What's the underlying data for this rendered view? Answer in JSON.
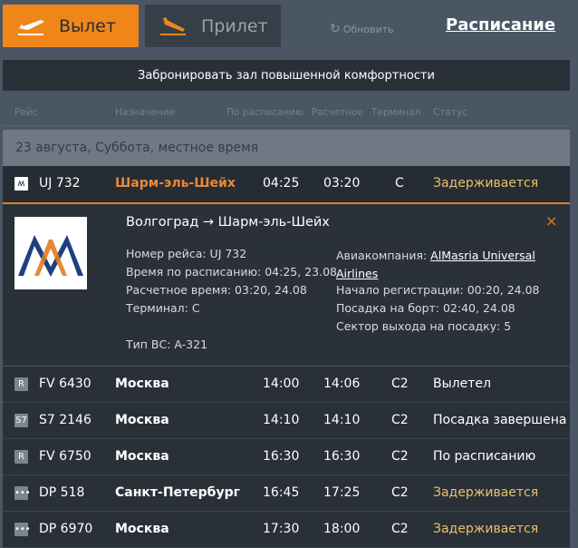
{
  "tabs": {
    "departure": "Вылет",
    "arrival": "Прилет"
  },
  "refresh": "Обновить",
  "schedule_link": "Расписание",
  "banner": "Забронировать зал повышенной комфортности",
  "columns": [
    "Рейс",
    "Назначение",
    "По расписанию",
    "Расчетное",
    "Терминал",
    "Статус"
  ],
  "date_header": "23 августа, Суббота, местное время",
  "colors": {
    "accent": "#f0861a",
    "delayed": "#e8c16a",
    "dest_highlight": "#e8873a"
  },
  "expanded": {
    "flight": "UJ 732",
    "destination": "Шарм-эль-Шейх",
    "scheduled": "04:25",
    "estimated": "03:20",
    "terminal": "C",
    "status": "Задерживается",
    "route": "Волгоград → Шарм-эль-Шейх",
    "left": [
      "Номер рейса: UJ 732",
      "Время по расписанию: 04:25, 23.08",
      "Расчетное время: 03:20, 24.08",
      "Терминал: C"
    ],
    "aircraft": "Тип ВС: A-321",
    "airline_label": "Авиакомпания: ",
    "airline": "AlMasria Universal Airlines",
    "right": [
      "Начало регистрации: 00:20, 24.08",
      "Посадка на борт: 02:40, 24.08",
      "Сектор выхода на посадку: 5"
    ],
    "close": "×"
  },
  "flights": [
    {
      "logo": "R",
      "flight": "FV 6430",
      "destination": "Москва",
      "scheduled": "14:00",
      "estimated": "14:06",
      "terminal": "C2",
      "status": "Вылетел",
      "delayed": false
    },
    {
      "logo": "S7",
      "flight": "S7 2146",
      "destination": "Москва",
      "scheduled": "14:10",
      "estimated": "14:10",
      "terminal": "C2",
      "status": "Посадка завершена",
      "delayed": false
    },
    {
      "logo": "R",
      "flight": "FV 6750",
      "destination": "Москва",
      "scheduled": "16:30",
      "estimated": "16:30",
      "terminal": "C2",
      "status": "По расписанию",
      "delayed": false
    },
    {
      "logo": "•••",
      "flight": "DP 518",
      "destination": "Санкт-Петербург",
      "scheduled": "16:45",
      "estimated": "17:25",
      "terminal": "C2",
      "status": "Задерживается",
      "delayed": true
    },
    {
      "logo": "•••",
      "flight": "DP 6970",
      "destination": "Москва",
      "scheduled": "17:30",
      "estimated": "18:00",
      "terminal": "C2",
      "status": "Задерживается",
      "delayed": true
    }
  ]
}
